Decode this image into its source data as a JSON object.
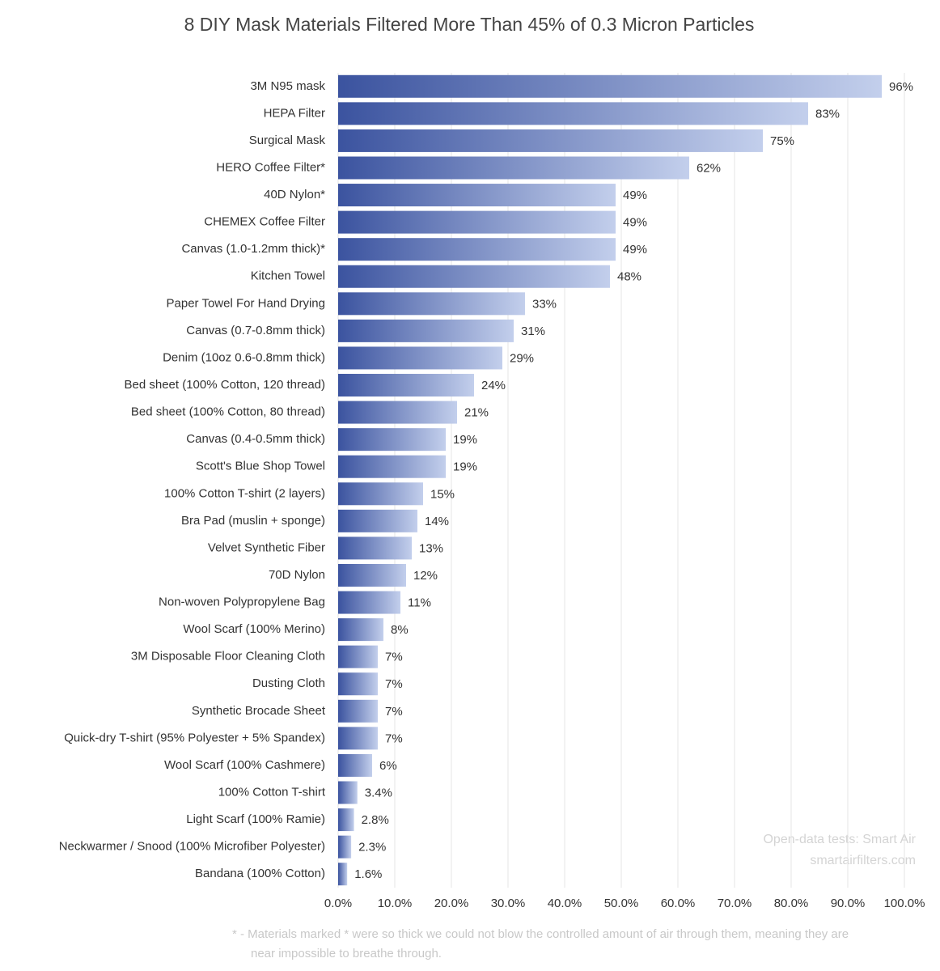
{
  "chart_data": {
    "type": "bar",
    "orientation": "horizontal",
    "title": "8 DIY Mask Materials Filtered More Than 45% of 0.3 Micron Particles",
    "categories": [
      "3M N95 mask",
      "HEPA Filter",
      "Surgical Mask",
      "HERO Coffee Filter*",
      "40D Nylon*",
      "CHEMEX Coffee Filter",
      "Canvas (1.0-1.2mm thick)*",
      "Kitchen Towel",
      "Paper Towel For Hand Drying",
      "Canvas (0.7-0.8mm thick)",
      "Denim (10oz 0.6-0.8mm thick)",
      "Bed sheet (100% Cotton, 120 thread)",
      "Bed sheet (100% Cotton, 80 thread)",
      "Canvas (0.4-0.5mm thick)",
      "Scott's Blue Shop Towel",
      "100% Cotton T-shirt (2 layers)",
      "Bra Pad (muslin + sponge)",
      "Velvet Synthetic Fiber",
      "70D Nylon",
      "Non-woven Polypropylene Bag",
      "Wool Scarf (100% Merino)",
      "3M Disposable Floor Cleaning Cloth",
      "Dusting Cloth",
      "Synthetic Brocade Sheet",
      "Quick-dry T-shirt (95% Polyester + 5% Spandex)",
      "Wool Scarf (100% Cashmere)",
      "100% Cotton T-shirt",
      "Light Scarf (100% Ramie)",
      "Neckwarmer / Snood (100% Microfiber Polyester)",
      "Bandana (100% Cotton)"
    ],
    "values": [
      96,
      83,
      75,
      62,
      49,
      49,
      49,
      48,
      33,
      31,
      29,
      24,
      21,
      19,
      19,
      15,
      14,
      13,
      12,
      11,
      8,
      7,
      7,
      7,
      7,
      6,
      3.4,
      2.8,
      2.3,
      1.6
    ],
    "value_labels": [
      "96%",
      "83%",
      "75%",
      "62%",
      "49%",
      "49%",
      "49%",
      "48%",
      "33%",
      "31%",
      "29%",
      "24%",
      "21%",
      "19%",
      "19%",
      "15%",
      "14%",
      "13%",
      "12%",
      "11%",
      "8%",
      "7%",
      "7%",
      "7%",
      "7%",
      "6%",
      "3.4%",
      "2.8%",
      "2.3%",
      "1.6%"
    ],
    "color_start": "#3b539f",
    "color_end": "#c3cfec",
    "xlim": [
      0,
      100
    ],
    "xticks": [
      {
        "value": 0,
        "label": "0.0%"
      },
      {
        "value": 10,
        "label": "10.0%"
      },
      {
        "value": 20,
        "label": "20.0%"
      },
      {
        "value": 30,
        "label": "30.0%"
      },
      {
        "value": 40,
        "label": "40.0%"
      },
      {
        "value": 50,
        "label": "50.0%"
      },
      {
        "value": 60,
        "label": "60.0%"
      },
      {
        "value": 70,
        "label": "70.0%"
      },
      {
        "value": 80,
        "label": "80.0%"
      },
      {
        "value": 90,
        "label": "90.0%"
      },
      {
        "value": 100,
        "label": "100.0%"
      }
    ],
    "grid": true,
    "watermark": [
      "Open-data tests:  Smart Air",
      "smartairfilters.com"
    ],
    "footnote": [
      "* - Materials marked * were so thick we could not blow the controlled  amount of air through them, meaning they are",
      "near impossible to breathe through."
    ]
  }
}
